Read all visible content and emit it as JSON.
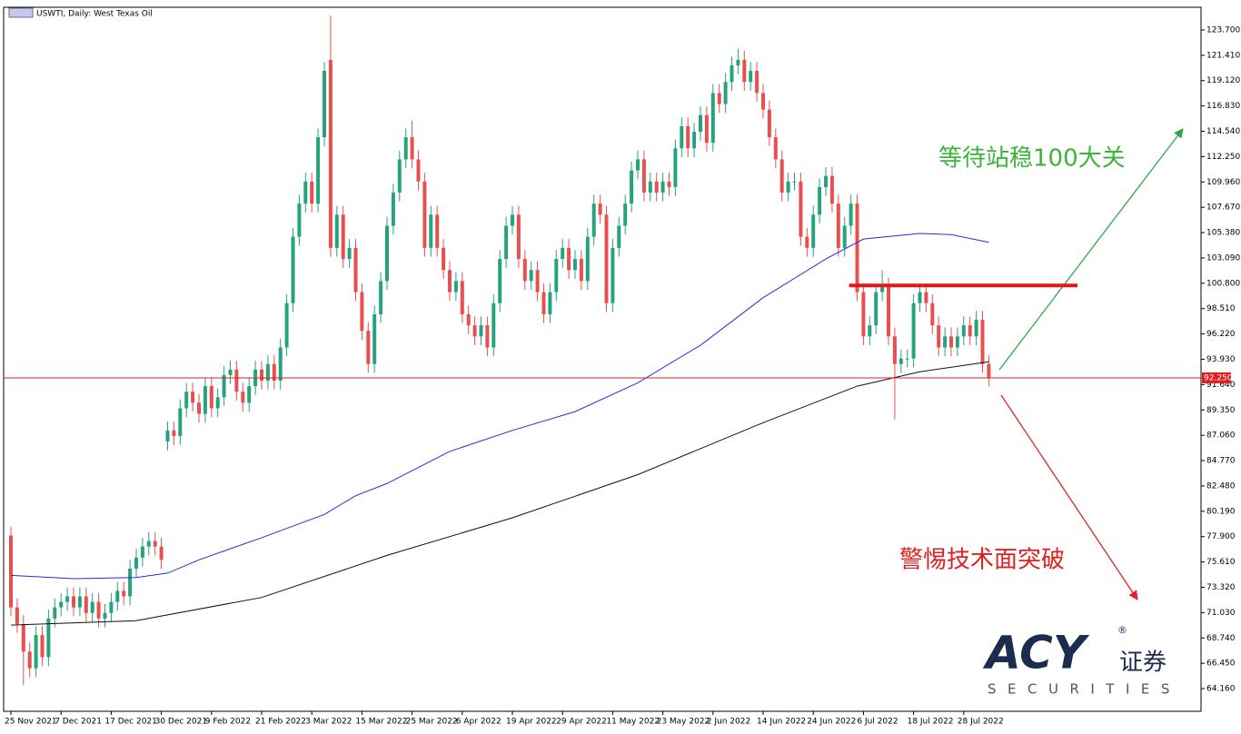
{
  "chart_data": {
    "type": "candlestick",
    "title": "USWTI, Daily: West Texas Oil",
    "categories": [
      "25 Nov 2021",
      null,
      null,
      null,
      null,
      null,
      null,
      null,
      "7 Dec 2021",
      null,
      null,
      null,
      null,
      null,
      null,
      null,
      "17 Dec 2021",
      null,
      null,
      null,
      null,
      null,
      null,
      null,
      "30 Dec 2021",
      null,
      null,
      null,
      null,
      null,
      null,
      null,
      "9 Feb 2022",
      null,
      null,
      null,
      null,
      null,
      null,
      null,
      "21 Feb 2022",
      null,
      null,
      null,
      null,
      null,
      null,
      null,
      "3 Mar 2022",
      null,
      null,
      null,
      null,
      null,
      null,
      null,
      "15 Mar 2022",
      null,
      null,
      null,
      null,
      null,
      null,
      null,
      "25 Mar 2022",
      null,
      null,
      null,
      null,
      null,
      null,
      null,
      "6 Apr 2022",
      null,
      null,
      null,
      null,
      null,
      null,
      null,
      "19 Apr 2022",
      null,
      null,
      null,
      null,
      null,
      null,
      null,
      "29 Apr 2022",
      null,
      null,
      null,
      null,
      null,
      null,
      null,
      "11 May 2022",
      null,
      null,
      null,
      null,
      null,
      null,
      null,
      "23 May 2022",
      null,
      null,
      null,
      null,
      null,
      null,
      null,
      "2 Jun 2022",
      null,
      null,
      null,
      null,
      null,
      null,
      null,
      "14 Jun 2022",
      null,
      null,
      null,
      null,
      null,
      null,
      null,
      "24 Jun 2022",
      null,
      null,
      null,
      null,
      null,
      null,
      null,
      "6 Jul 2022",
      null,
      null,
      null,
      null,
      null,
      null,
      null,
      "18 Jul 2022",
      null,
      null,
      null,
      null,
      null,
      null,
      null,
      "28 Jul 2022",
      null,
      null,
      null,
      null
    ],
    "open": [
      78,
      71.5,
      70,
      67.5,
      66,
      69,
      67,
      70.5,
      71.5,
      72,
      72.5,
      71.5,
      72.5,
      71,
      72,
      70.5,
      71,
      72,
      73,
      72.5,
      75,
      76,
      77,
      77.5,
      77,
      86.5,
      87.5,
      87,
      89.5,
      91,
      90,
      89,
      91.5,
      89.5,
      90.5,
      92.5,
      93,
      91,
      90,
      91.5,
      93,
      92,
      93.5,
      92,
      95,
      99,
      105,
      108,
      110,
      108,
      114,
      121,
      104,
      107,
      103,
      104,
      100,
      96.5,
      93.5,
      98,
      101,
      106,
      109,
      112,
      114,
      112,
      110,
      104,
      107,
      104,
      102,
      100,
      101,
      98,
      97,
      96,
      97,
      95,
      99,
      103,
      106,
      107,
      103,
      101,
      102,
      100,
      98,
      100,
      103,
      104,
      102,
      103,
      101,
      105,
      108,
      107,
      99,
      104,
      106,
      108,
      111,
      112,
      109,
      110,
      109,
      110,
      109.5,
      113,
      115,
      113,
      114.5,
      116,
      113.5,
      118,
      117,
      119,
      120.5,
      121,
      119,
      120,
      118,
      116.5,
      114,
      112,
      109,
      110,
      110,
      105,
      104,
      107,
      109.5,
      110.5,
      108,
      104,
      106,
      108,
      100,
      96,
      97,
      100,
      100.5,
      96,
      93.5,
      94,
      94,
      99,
      100,
      99,
      97,
      95,
      96,
      95,
      96,
      97,
      96,
      97.5,
      93.5
    ],
    "high": [
      78.8,
      72.3,
      70.8,
      68.3,
      69.8,
      69.8,
      71.3,
      72.3,
      72.8,
      73.3,
      73.3,
      73.3,
      73.3,
      72.8,
      72.8,
      71.8,
      72.8,
      73.8,
      73.8,
      75.8,
      76.8,
      77.8,
      78.3,
      78.3,
      77.8,
      88.3,
      88.3,
      90.3,
      91.8,
      91.8,
      90.8,
      92.3,
      92.3,
      91.3,
      93.3,
      93.8,
      93.8,
      91.8,
      92.3,
      93.8,
      93.8,
      94.3,
      94.3,
      95.8,
      99.8,
      105.8,
      108.8,
      110.8,
      110.8,
      114.8,
      120.8,
      125,
      107.8,
      107.8,
      104.8,
      104.8,
      100.8,
      97.3,
      98.8,
      101.8,
      106.8,
      109.8,
      112.8,
      114.8,
      115.5,
      112.8,
      110.8,
      107.8,
      107.8,
      104.8,
      102.8,
      101.8,
      101.8,
      98.8,
      97.8,
      97.8,
      97.8,
      99.8,
      103.8,
      106.8,
      107.8,
      107.8,
      103.8,
      102.8,
      102.8,
      100.8,
      100.8,
      103.8,
      104.8,
      104.8,
      103.8,
      103.8,
      105.8,
      108.8,
      108.8,
      107.8,
      104.8,
      106.8,
      108.8,
      111.8,
      112.8,
      112.8,
      110.8,
      110.8,
      110.8,
      110.8,
      113.8,
      115.8,
      115.8,
      115.3,
      116.8,
      116.8,
      118.8,
      118.8,
      119.8,
      121.3,
      122,
      121.8,
      120.8,
      120.8,
      118.8,
      117.3,
      114.8,
      112.8,
      110.8,
      110.8,
      110.8,
      105.8,
      107.8,
      110.3,
      111.3,
      111.3,
      108.8,
      106.8,
      108.8,
      108.8,
      100.8,
      97.8,
      100.8,
      102,
      101.3,
      96.8,
      94.8,
      94.8,
      99.8,
      100.8,
      100.8,
      99.8,
      97.8,
      96.8,
      96.8,
      96.8,
      97.8,
      97.8,
      98.3,
      98.3,
      94.3
    ],
    "low": [
      70.7,
      69.2,
      64.5,
      65.2,
      65.2,
      66.2,
      66.2,
      69.7,
      70.7,
      71.2,
      70.7,
      70.7,
      70.2,
      70.2,
      69.7,
      69.7,
      70.2,
      71.2,
      71.7,
      71.7,
      74.2,
      75.2,
      76.2,
      76.2,
      75,
      85.7,
      86.2,
      86.2,
      88.7,
      89.2,
      88.2,
      88.2,
      88.7,
      88.7,
      89.7,
      91.7,
      90.2,
      89.2,
      89.2,
      90.7,
      91.2,
      91.2,
      91.2,
      91.2,
      94.2,
      98.2,
      104.2,
      107.2,
      107.2,
      107.2,
      113.2,
      103.2,
      103.2,
      102.2,
      102.2,
      99.2,
      95.7,
      92.7,
      92.7,
      97.2,
      100.2,
      105.2,
      108.2,
      111.2,
      111.2,
      109.2,
      103.2,
      103.2,
      103.2,
      101.2,
      99.2,
      99.2,
      97.2,
      96.2,
      95.2,
      95.2,
      94.2,
      94.2,
      98.2,
      102.2,
      105.2,
      102.2,
      100.2,
      100.2,
      99.2,
      97.2,
      97.2,
      99.2,
      102.2,
      101.2,
      101.2,
      100.2,
      100.2,
      104.2,
      106.2,
      98.2,
      98.2,
      103.2,
      105.2,
      107.2,
      110.2,
      108.2,
      108.2,
      108.2,
      108.2,
      108.7,
      108.7,
      112.2,
      112.2,
      112.2,
      113.7,
      112.7,
      112.7,
      116.2,
      116.2,
      118.2,
      119.7,
      118.2,
      118.2,
      117.2,
      115.7,
      113.2,
      111.2,
      108.2,
      108.2,
      109.2,
      104.2,
      103.2,
      103.2,
      106.2,
      108.7,
      107.2,
      103.2,
      103.2,
      105.2,
      99.2,
      95.2,
      95.2,
      96.2,
      99.2,
      95.2,
      88.5,
      92.7,
      93.2,
      93.2,
      98.2,
      98.2,
      96.2,
      94.2,
      94.2,
      94.2,
      94.2,
      95.2,
      95.2,
      95.2,
      92.7,
      91.5
    ],
    "close": [
      71.5,
      70,
      67.5,
      66,
      69,
      67,
      70.5,
      71.5,
      72,
      72.5,
      71.5,
      72.5,
      71,
      72,
      70.5,
      71,
      72,
      73,
      72.5,
      75,
      76,
      77,
      77.5,
      77,
      75.8,
      87.5,
      87,
      89.5,
      91,
      90,
      89,
      91.5,
      89.5,
      90.5,
      92.5,
      93,
      91,
      90,
      91.5,
      93,
      92,
      93.5,
      92,
      95,
      99,
      105,
      108,
      110,
      108,
      114,
      120,
      104,
      107,
      103,
      104,
      100,
      96.5,
      93.5,
      98,
      101,
      106,
      109,
      112,
      114,
      112,
      110,
      104,
      107,
      104,
      102,
      100,
      101,
      98,
      97,
      96,
      97,
      95,
      99,
      103,
      106,
      107,
      103,
      101,
      102,
      100,
      98,
      100,
      103,
      104,
      102,
      103,
      101,
      105,
      108,
      107,
      99,
      104,
      106,
      108,
      111,
      112,
      109,
      110,
      109,
      110,
      109.5,
      113,
      115,
      113,
      114.5,
      116,
      113.5,
      118,
      117,
      119,
      120.5,
      121,
      119,
      120,
      118,
      116.5,
      114,
      112,
      109,
      110,
      110,
      105,
      104,
      107,
      109.5,
      110.5,
      108,
      104,
      106,
      108,
      100,
      96,
      97,
      100,
      100.5,
      96,
      93.5,
      94,
      94,
      99,
      100,
      99,
      97,
      95,
      96,
      95,
      96,
      97,
      96,
      97.5,
      93.5,
      92.25
    ],
    "up_color": "#26a37e",
    "down_color": "#e8504f",
    "lines": [
      {
        "color": "#2b2bd6",
        "x": [
          0,
          10,
          20,
          25,
          30,
          40,
          50,
          55,
          60,
          70,
          80,
          90,
          100,
          110,
          120,
          130,
          136,
          145,
          150,
          156
        ],
        "values": [
          74.4,
          74.1,
          74.2,
          74.6,
          75.8,
          77.8,
          79.9,
          81.6,
          82.7,
          85.6,
          87.5,
          89.2,
          91.8,
          95.2,
          99.5,
          103,
          104.8,
          105.3,
          105.2,
          104.5
        ]
      },
      {
        "color": "#111111",
        "x": [
          0,
          20,
          40,
          60,
          80,
          100,
          120,
          135,
          145,
          156
        ],
        "values": [
          69.9,
          70.3,
          72.4,
          76.2,
          79.6,
          83.5,
          88.2,
          91.5,
          92.8,
          93.7
        ]
      }
    ],
    "price_line": {
      "value": 92.25,
      "label": "92.250"
    },
    "resistance": 100.6,
    "ylim": [
      62.11,
      125.75
    ],
    "yticks": [
      {
        "value": 123.7,
        "label": "123.700"
      },
      {
        "value": 121.41,
        "label": "121.410"
      },
      {
        "value": 119.12,
        "label": "119.120"
      },
      {
        "value": 116.83,
        "label": "116.830"
      },
      {
        "value": 114.54,
        "label": "114.540"
      },
      {
        "value": 112.25,
        "label": "112.250"
      },
      {
        "value": 109.96,
        "label": "109.960"
      },
      {
        "value": 107.67,
        "label": "107.670"
      },
      {
        "value": 105.38,
        "label": "105.380"
      },
      {
        "value": 103.09,
        "label": "103.090"
      },
      {
        "value": 100.8,
        "label": "100.800"
      },
      {
        "value": 98.51,
        "label": "98.510"
      },
      {
        "value": 96.22,
        "label": "96.220"
      },
      {
        "value": 93.93,
        "label": "93.930"
      },
      {
        "value": 91.64,
        "label": "91.640"
      },
      {
        "value": 89.35,
        "label": "89.350"
      },
      {
        "value": 87.06,
        "label": "87.060"
      },
      {
        "value": 84.77,
        "label": "84.770"
      },
      {
        "value": 82.48,
        "label": "82.480"
      },
      {
        "value": 80.19,
        "label": "80.190"
      },
      {
        "value": 77.9,
        "label": "77.900"
      },
      {
        "value": 75.61,
        "label": "75.610"
      },
      {
        "value": 73.32,
        "label": "73.320"
      },
      {
        "value": 71.03,
        "label": "71.030"
      },
      {
        "value": 68.74,
        "label": "68.740"
      },
      {
        "value": 66.45,
        "label": "66.450"
      },
      {
        "value": 64.16,
        "label": "64.160"
      }
    ],
    "annotations": [
      "等待站稳100大关",
      "警惕技术面突破"
    ],
    "logo": {
      "brand": "ACY",
      "mark": "®",
      "cn": "证券",
      "sub": "SECURITIES"
    }
  }
}
